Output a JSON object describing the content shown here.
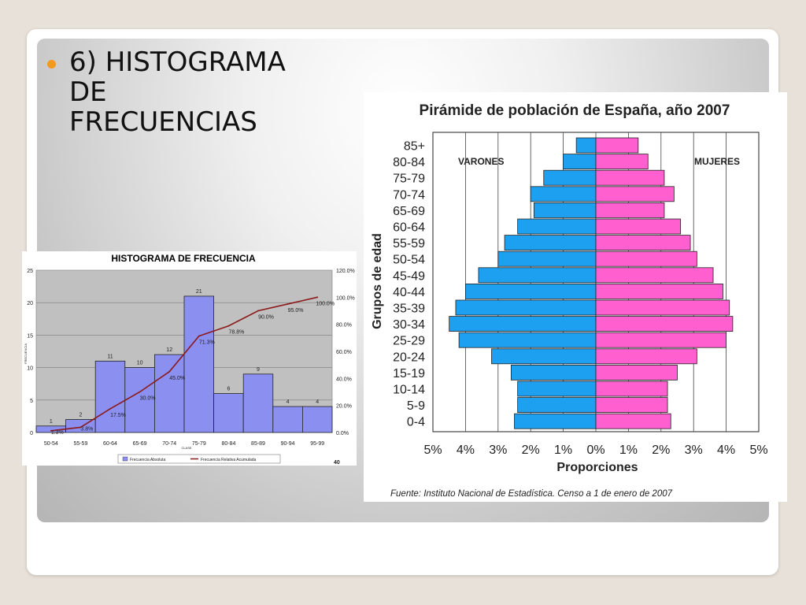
{
  "slide": {
    "title": "6) HISTOGRAMA DE FRECUENCIAS",
    "colors": {
      "bullet": "#f39a1e",
      "background": "#e7e1d9"
    }
  },
  "chart_data": [
    {
      "type": "bar",
      "title": "HISTOGRAMA DE FRECUENCIA",
      "xlabel": "CLASE",
      "ylabel": "FRECUENCIA",
      "categories": [
        "50-54",
        "55-59",
        "60-64",
        "65-69",
        "70-74",
        "75-79",
        "80-84",
        "85-89",
        "90-94",
        "95-99"
      ],
      "series": [
        {
          "name": "Frecuencia Absoluta",
          "type": "bar",
          "color": "#8a8ff0",
          "values": [
            1,
            2,
            11,
            10,
            12,
            21,
            6,
            9,
            4,
            4
          ],
          "labels": [
            "1",
            "2",
            "11",
            "10",
            "12",
            "21",
            "6",
            "9",
            "4",
            "4"
          ]
        },
        {
          "name": "Frecuencia Relativa Acumulada",
          "type": "line",
          "color": "#8b1a1a",
          "axis": "right",
          "values": [
            1.3,
            3.8,
            17.5,
            30.0,
            45.0,
            71.3,
            78.8,
            90.0,
            95.0,
            100.0
          ],
          "labels": [
            "1.3%",
            "3.8%",
            "17.5%",
            "30.0%",
            "45.0%",
            "71.3%",
            "78.8%",
            "90.0%",
            "95.0%",
            "100.0%"
          ]
        }
      ],
      "y_ticks": [
        "0",
        "5",
        "10",
        "15",
        "20",
        "25"
      ],
      "y2_ticks": [
        "0.0%",
        "20.0%",
        "40.0%",
        "60.0%",
        "80.0%",
        "100.0%",
        "120.0%"
      ],
      "ylim": [
        0,
        25
      ],
      "y2lim": [
        0,
        120
      ],
      "plot_background": "#c0c0c0",
      "grid": true,
      "legend": "bottom",
      "footer_label": "40"
    },
    {
      "type": "bar",
      "orientation": "horizontal-pyramid",
      "title": "Pirámide de población de España, año 2007",
      "xlabel": "Proporciones",
      "ylabel": "Grupos de edad",
      "categories": [
        "85+",
        "80-84",
        "75-79",
        "70-74",
        "65-69",
        "60-64",
        "55-59",
        "50-54",
        "45-49",
        "40-44",
        "35-39",
        "30-34",
        "25-29",
        "20-24",
        "15-19",
        "10-14",
        "5-9",
        "0-4"
      ],
      "series": [
        {
          "name": "VARONES",
          "color": "#1ea0f0",
          "values": [
            0.6,
            1.0,
            1.6,
            2.0,
            1.9,
            2.4,
            2.8,
            3.0,
            3.6,
            4.0,
            4.3,
            4.5,
            4.2,
            3.2,
            2.6,
            2.4,
            2.4,
            2.5
          ]
        },
        {
          "name": "MUJERES",
          "color": "#ff5fcf",
          "values": [
            1.3,
            1.6,
            2.1,
            2.4,
            2.1,
            2.6,
            2.9,
            3.1,
            3.6,
            3.9,
            4.1,
            4.2,
            4.0,
            3.1,
            2.5,
            2.2,
            2.2,
            2.3
          ]
        }
      ],
      "x_ticks": [
        "5%",
        "4%",
        "3%",
        "2%",
        "1%",
        "0%",
        "1%",
        "2%",
        "3%",
        "4%",
        "5%"
      ],
      "xlim": [
        -5,
        5
      ],
      "grid": true,
      "source": "Fuente: Instituto Nacional de Estadística. Censo a 1 de enero de 2007"
    }
  ]
}
